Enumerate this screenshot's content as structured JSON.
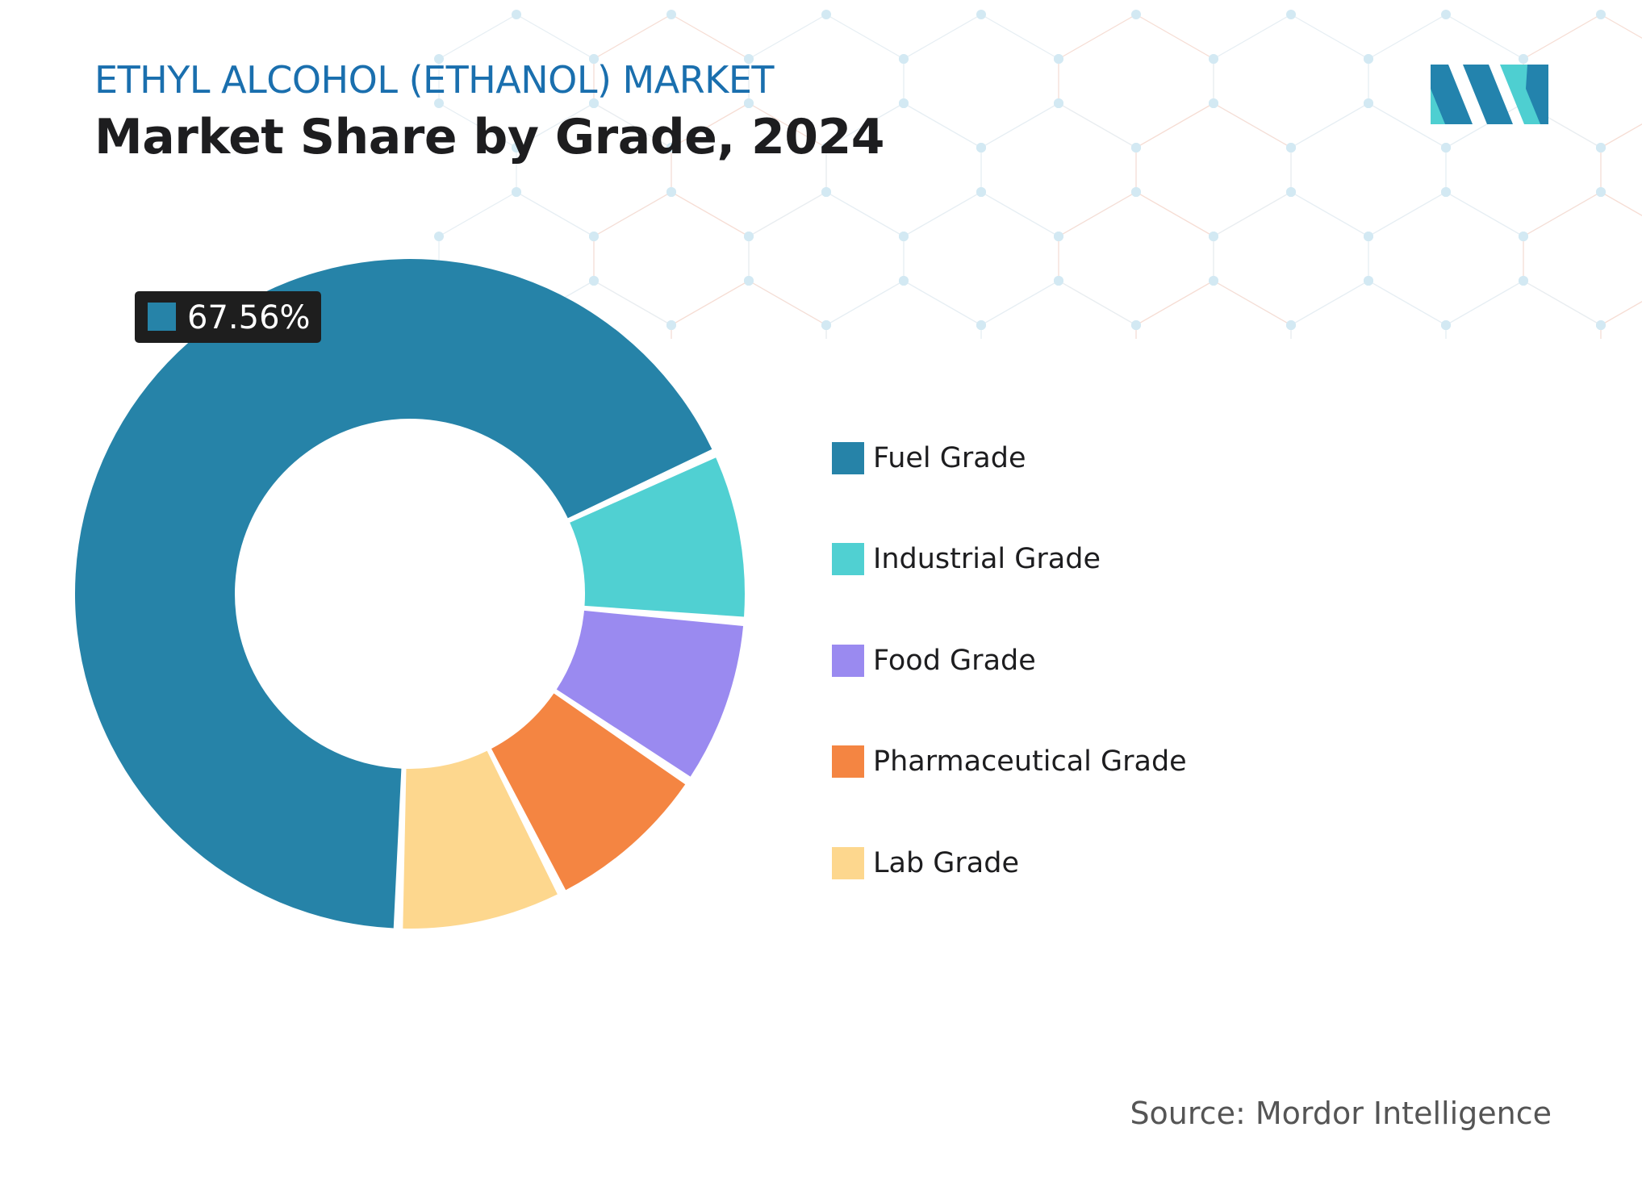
{
  "header": {
    "kicker": "ETHYL ALCOHOL (ETHANOL) MARKET",
    "title": "Market Share by Grade, 2024"
  },
  "source": "Source: Mordor Intelligence",
  "logo": {
    "icon": "mordor-intelligence-logo-icon",
    "colors": [
      "#2383ad",
      "#4ecfd1"
    ]
  },
  "chart_data": {
    "type": "pie",
    "variant": "donut",
    "title": "",
    "categories": [
      "Fuel Grade",
      "Industrial Grade",
      "Food Grade",
      "Pharmaceutical Grade",
      "Lab Grade"
    ],
    "values": [
      67.56,
      8.2,
      8.1,
      8.1,
      8.04
    ],
    "colors": [
      "#2683a8",
      "#50d0d2",
      "#9a8af0",
      "#f48542",
      "#fdd78e"
    ],
    "data_labels": [
      {
        "category": "Fuel Grade",
        "text": "67.56%"
      }
    ],
    "legend_position": "right"
  }
}
